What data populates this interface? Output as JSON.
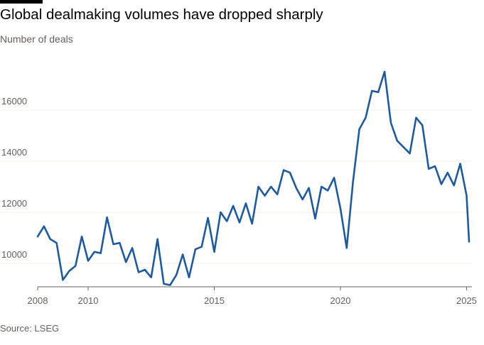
{
  "title": "Global dealmaking volumes have dropped sharply",
  "subtitle": "Number of deals",
  "source": "Source: LSEG",
  "colors": {
    "line": "#1d5aa0",
    "grid": "#f0ebe7",
    "axis": "#66605c",
    "text": "#66605c"
  },
  "chart_data": {
    "type": "line",
    "title": "Global dealmaking volumes have dropped sharply",
    "ylabel": "Number of deals",
    "xlabel": "",
    "xlim": [
      2008,
      2025.1
    ],
    "ylim": [
      9000,
      17500
    ],
    "y_ticks": [
      10000,
      12000,
      14000,
      16000
    ],
    "y_tick_labels": [
      "10000",
      "12000",
      "14000",
      "16000"
    ],
    "x_ticks": [
      2008,
      2010,
      2015,
      2020,
      2025
    ],
    "x_tick_labels": [
      "2008",
      "2010",
      "2015",
      "2020",
      "2025"
    ],
    "grid": true,
    "x": [
      2008.0,
      2008.25,
      2008.5,
      2008.75,
      2009.0,
      2009.25,
      2009.5,
      2009.75,
      2010.0,
      2010.25,
      2010.5,
      2010.75,
      2011.0,
      2011.25,
      2011.5,
      2011.75,
      2012.0,
      2012.25,
      2012.5,
      2012.75,
      2013.0,
      2013.25,
      2013.5,
      2013.75,
      2014.0,
      2014.25,
      2014.5,
      2014.75,
      2015.0,
      2015.25,
      2015.5,
      2015.75,
      2016.0,
      2016.25,
      2016.5,
      2016.75,
      2017.0,
      2017.25,
      2017.5,
      2017.75,
      2018.0,
      2018.25,
      2018.5,
      2018.75,
      2019.0,
      2019.25,
      2019.5,
      2019.75,
      2020.0,
      2020.25,
      2020.5,
      2020.75,
      2021.0,
      2021.25,
      2021.5,
      2021.75,
      2022.0,
      2022.25,
      2022.5,
      2022.75,
      2023.0,
      2023.25,
      2023.5,
      2023.75,
      2024.0,
      2024.25,
      2024.5,
      2024.75,
      2025.0,
      2025.1
    ],
    "series": [
      {
        "values": [
          11050,
          11450,
          10950,
          10800,
          9350,
          9700,
          9900,
          11050,
          10100,
          10450,
          10400,
          11800,
          10750,
          10800,
          10050,
          10600,
          9650,
          9750,
          9450,
          10950,
          9200,
          9150,
          9550,
          10350,
          9450,
          10550,
          10650,
          11780,
          10450,
          12000,
          11650,
          12250,
          11600,
          12350,
          11550,
          13000,
          12650,
          13000,
          12700,
          13650,
          13550,
          12950,
          12500,
          12950,
          11750,
          13000,
          12850,
          13350,
          12150,
          10600,
          13200,
          15250,
          15700,
          16750,
          16700,
          17500,
          15500,
          14800,
          14550,
          14300,
          15700,
          15400,
          13700,
          13800,
          13100,
          13550,
          13050,
          13900,
          12650,
          10850
        ]
      }
    ]
  }
}
